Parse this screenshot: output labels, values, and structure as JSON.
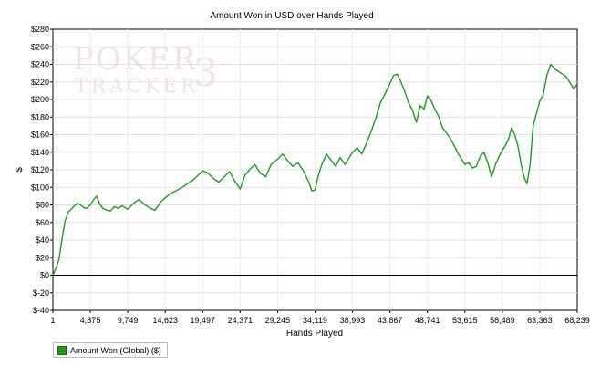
{
  "chart_data": {
    "type": "line",
    "title": "Amount Won in USD over Hands Played",
    "xlabel": "Hands Played",
    "ylabel": "$",
    "xlim": [
      1,
      68239
    ],
    "ylim": [
      -40,
      280
    ],
    "x_ticks": [
      {
        "value": 1,
        "label": "1"
      },
      {
        "value": 4875,
        "label": "4,875"
      },
      {
        "value": 9749,
        "label": "9,749"
      },
      {
        "value": 14623,
        "label": "14,623"
      },
      {
        "value": 19497,
        "label": "19,497"
      },
      {
        "value": 24371,
        "label": "24,371"
      },
      {
        "value": 29245,
        "label": "29,245"
      },
      {
        "value": 34119,
        "label": "34,119"
      },
      {
        "value": 38993,
        "label": "38,993"
      },
      {
        "value": 43867,
        "label": "43,867"
      },
      {
        "value": 48741,
        "label": "48,741"
      },
      {
        "value": 53615,
        "label": "53,615"
      },
      {
        "value": 58489,
        "label": "58,489"
      },
      {
        "value": 63363,
        "label": "63,363"
      },
      {
        "value": 68239,
        "label": "68,239"
      }
    ],
    "y_ticks": [
      {
        "value": 280,
        "label": "$280"
      },
      {
        "value": 260,
        "label": "$260"
      },
      {
        "value": 240,
        "label": "$240"
      },
      {
        "value": 220,
        "label": "$220"
      },
      {
        "value": 200,
        "label": "$200"
      },
      {
        "value": 180,
        "label": "$180"
      },
      {
        "value": 160,
        "label": "$160"
      },
      {
        "value": 140,
        "label": "$140"
      },
      {
        "value": 120,
        "label": "$120"
      },
      {
        "value": 100,
        "label": "$100"
      },
      {
        "value": 80,
        "label": "$80"
      },
      {
        "value": 60,
        "label": "$60"
      },
      {
        "value": 40,
        "label": "$40"
      },
      {
        "value": 20,
        "label": "$20"
      },
      {
        "value": 0,
        "label": "$0"
      },
      {
        "value": -20,
        "label": "$-20"
      },
      {
        "value": -40,
        "label": "$-40"
      }
    ],
    "grid": true,
    "legend_position": "bottom-left",
    "series": [
      {
        "name": "Amount Won (Global) ($)",
        "color": "#1a9e1a",
        "x": [
          1,
          400,
          800,
          1200,
          1600,
          2000,
          2400,
          2800,
          3200,
          3600,
          4000,
          4400,
          4875,
          5300,
          5700,
          6100,
          6500,
          7000,
          7500,
          8000,
          8500,
          9000,
          9749,
          10500,
          11200,
          12000,
          12700,
          13300,
          14000,
          14623,
          15300,
          16000,
          16800,
          17500,
          18200,
          18800,
          19497,
          20200,
          20900,
          21600,
          22300,
          23000,
          23600,
          24371,
          25000,
          25700,
          26300,
          27000,
          27700,
          28400,
          29245,
          29900,
          30500,
          31200,
          31900,
          32600,
          33300,
          33700,
          34119,
          34500,
          35000,
          35600,
          36200,
          36800,
          37400,
          38000,
          38993,
          39600,
          40200,
          40800,
          41400,
          42000,
          42600,
          43200,
          43867,
          44300,
          44800,
          45300,
          45800,
          46300,
          46800,
          47300,
          47800,
          48300,
          48741,
          49200,
          49700,
          50200,
          50700,
          51200,
          51700,
          52200,
          52700,
          53200,
          53615,
          54100,
          54600,
          55100,
          55600,
          56100,
          56600,
          57100,
          57600,
          58100,
          58489,
          58900,
          59300,
          59700,
          60100,
          60500,
          60900,
          61300,
          61700,
          62100,
          62500,
          62900,
          63363,
          63800,
          64300,
          64800,
          65300,
          65800,
          66300,
          66800,
          67300,
          67800,
          68239
        ],
        "values": [
          0,
          8,
          18,
          42,
          62,
          72,
          75,
          79,
          82,
          80,
          77,
          76,
          80,
          86,
          90,
          81,
          76,
          74,
          73,
          78,
          76,
          79,
          75,
          82,
          86,
          80,
          76,
          74,
          83,
          88,
          93,
          96,
          100,
          104,
          108,
          113,
          119,
          116,
          110,
          106,
          112,
          118,
          108,
          98,
          114,
          121,
          126,
          116,
          112,
          126,
          132,
          138,
          131,
          124,
          128,
          119,
          106,
          96,
          97,
          112,
          126,
          138,
          131,
          124,
          134,
          126,
          140,
          145,
          138,
          150,
          163,
          178,
          196,
          206,
          218,
          227,
          229,
          220,
          209,
          196,
          188,
          174,
          193,
          189,
          204,
          199,
          189,
          181,
          168,
          162,
          156,
          148,
          139,
          132,
          126,
          128,
          122,
          124,
          135,
          140,
          128,
          112,
          126,
          136,
          142,
          148,
          155,
          168,
          160,
          148,
          128,
          112,
          104,
          126,
          170,
          183,
          198,
          205,
          228,
          240,
          235,
          232,
          229,
          226,
          219,
          212,
          218
        ]
      }
    ]
  },
  "watermark": {
    "line1": "POKER",
    "line2": "TRACKER",
    "mark": "3"
  },
  "legend": {
    "label": "Amount Won (Global) ($)"
  }
}
